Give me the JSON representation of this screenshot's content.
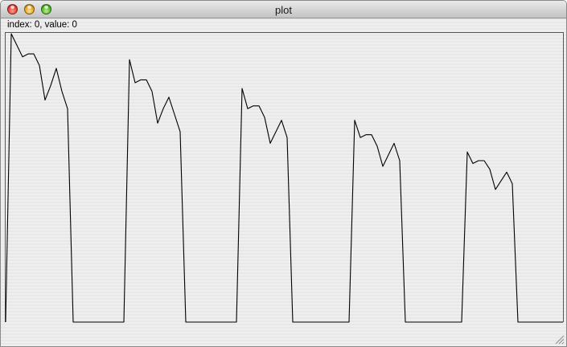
{
  "window": {
    "title": "plot"
  },
  "status": {
    "text": "index: 0, value: 0"
  },
  "colors": {
    "line": "#000000",
    "frame": "#555555",
    "background": "#ececec"
  },
  "icons": {
    "close": "close-icon",
    "minimize": "minimize-icon",
    "zoom": "zoom-icon",
    "resize": "resize-grip-icon"
  },
  "chart_data": {
    "type": "line",
    "title": "",
    "xlabel": "",
    "ylabel": "",
    "grid": false,
    "legend": "none",
    "xlim": [
      0,
      99
    ],
    "ylim": [
      0,
      1
    ],
    "series": [
      {
        "values": [
          0.0,
          1.0,
          0.96,
          0.92,
          0.93,
          0.93,
          0.89,
          0.77,
          0.82,
          0.88,
          0.8,
          0.74,
          0.0,
          0.0,
          0.0,
          0.0,
          0.0,
          0.0,
          0.0,
          0.0,
          0.0,
          0.0,
          0.91,
          0.83,
          0.84,
          0.84,
          0.8,
          0.69,
          0.74,
          0.78,
          0.72,
          0.66,
          0.0,
          0.0,
          0.0,
          0.0,
          0.0,
          0.0,
          0.0,
          0.0,
          0.0,
          0.0,
          0.81,
          0.74,
          0.75,
          0.75,
          0.71,
          0.62,
          0.66,
          0.7,
          0.64,
          0.0,
          0.0,
          0.0,
          0.0,
          0.0,
          0.0,
          0.0,
          0.0,
          0.0,
          0.0,
          0.0,
          0.7,
          0.64,
          0.65,
          0.65,
          0.61,
          0.54,
          0.58,
          0.62,
          0.56,
          0.0,
          0.0,
          0.0,
          0.0,
          0.0,
          0.0,
          0.0,
          0.0,
          0.0,
          0.0,
          0.0,
          0.59,
          0.55,
          0.56,
          0.56,
          0.53,
          0.46,
          0.49,
          0.52,
          0.48,
          0.0,
          0.0,
          0.0,
          0.0,
          0.0,
          0.0,
          0.0,
          0.0,
          0.0
        ]
      }
    ]
  }
}
